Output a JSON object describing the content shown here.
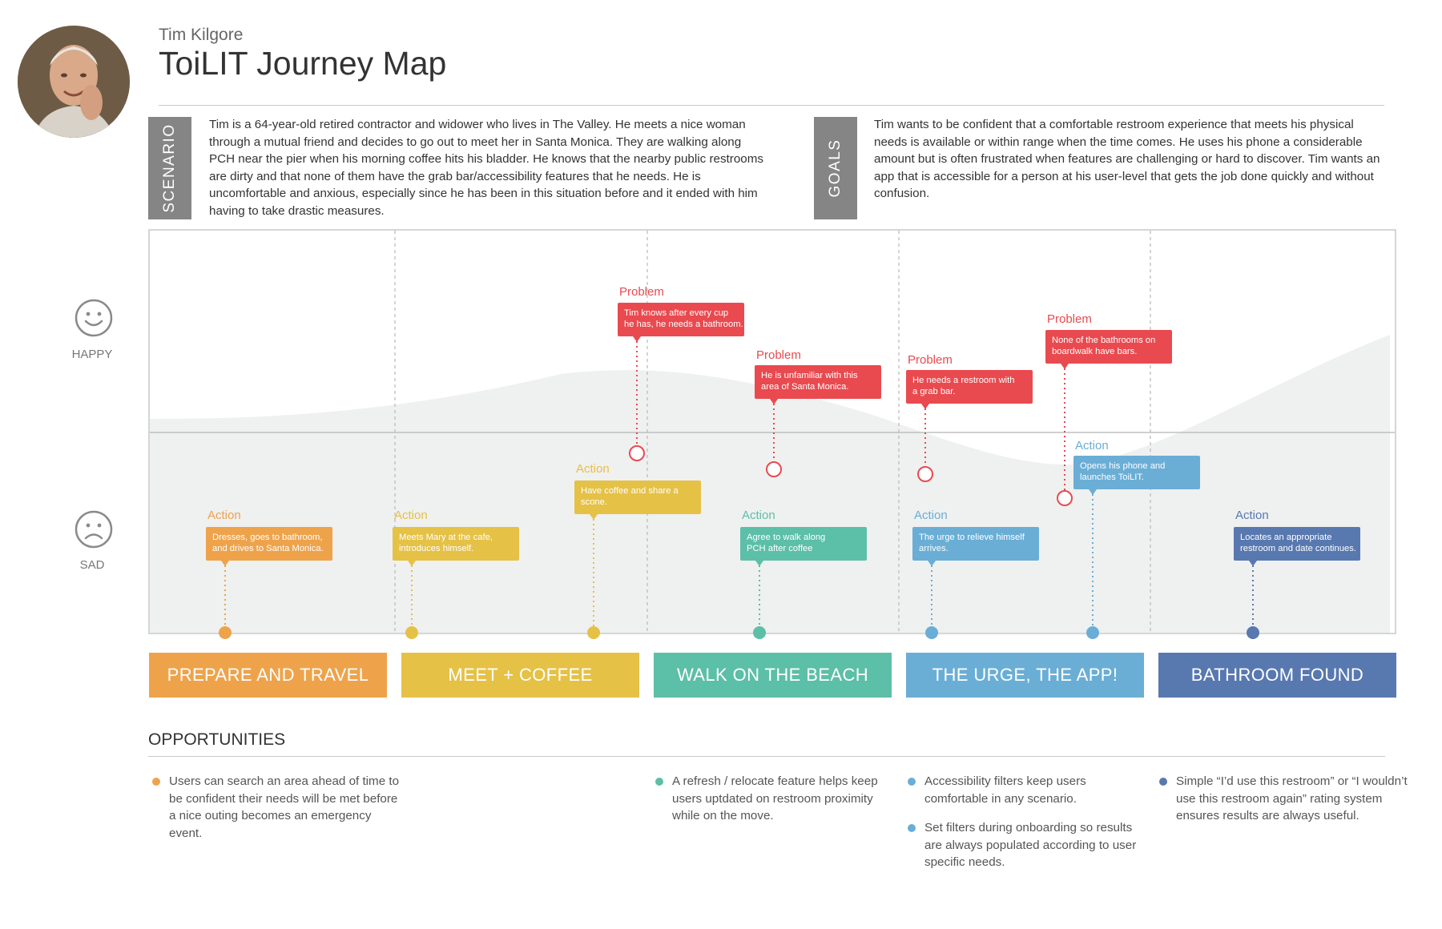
{
  "header": {
    "subtitle": "Tim Kilgore",
    "title": "ToiLIT Journey Map"
  },
  "scenario": {
    "label": "SCENARIO",
    "text": "Tim is a 64-year-old retired contractor and widower who lives in The Valley. He meets a nice woman through a mutual friend and decides to go out to meet her in Santa Monica. They are walking along PCH near the pier when his morning coffee hits his bladder. He knows that the nearby public restrooms are dirty and that none of them have the grab bar/accessibility features that he needs. He is uncomfortable and anxious, especially since he has been in this situation before and it ended with him having to take drastic measures."
  },
  "goals": {
    "label": "GOALS",
    "text": "Tim wants to be confident that a comfortable restroom experience that meets his physical needs is available or within range when the time comes. He uses his phone a considerable amount but is often frustrated when features are challenging or hard to discover. Tim wants an app that is accessible for a person at his user-level that gets the job done quickly and without confusion."
  },
  "moods": {
    "happy": "HAPPY",
    "sad": "SAD"
  },
  "colors": {
    "orange": "#eea34b",
    "yellow": "#e5c146",
    "teal": "#5cbfa7",
    "lightblue": "#6aaed6",
    "darkblue": "#5878b0",
    "red": "#e94a4f"
  },
  "phases": [
    {
      "label": "PREPARE AND TRAVEL",
      "color": "#eea34b"
    },
    {
      "label": "MEET + COFFEE",
      "color": "#e5c146"
    },
    {
      "label": "WALK ON THE BEACH",
      "color": "#5cbfa7"
    },
    {
      "label": "THE URGE, THE APP!",
      "color": "#6aaed6"
    },
    {
      "label": "BATHROOM FOUND",
      "color": "#5878b0"
    }
  ],
  "events": [
    {
      "kind": "Action",
      "text": [
        "Dresses, goes to bathroom,",
        "and drives to Santa Monica."
      ],
      "color": "#eea34b"
    },
    {
      "kind": "Action",
      "text": [
        "Meets Mary at the cafe,",
        "introduces himself."
      ],
      "color": "#e5c146"
    },
    {
      "kind": "Action",
      "text": [
        "Have coffee and share a",
        "scone."
      ],
      "color": "#e5c146"
    },
    {
      "kind": "Problem",
      "text": [
        "Tim knows after every cup",
        "he has, he needs a bathroom."
      ],
      "color": "#e94a4f"
    },
    {
      "kind": "Problem",
      "text": [
        "He is unfamiliar with this",
        "area of Santa Monica."
      ],
      "color": "#e94a4f"
    },
    {
      "kind": "Action",
      "text": [
        "Agree to walk along",
        "PCH after coffee"
      ],
      "color": "#5cbfa7"
    },
    {
      "kind": "Problem",
      "text": [
        "He needs a restroom with",
        "a grab bar."
      ],
      "color": "#e94a4f"
    },
    {
      "kind": "Action",
      "text": [
        "The urge to relieve himself",
        "arrives."
      ],
      "color": "#6aaed6"
    },
    {
      "kind": "Problem",
      "text": [
        "None of the bathrooms on",
        "boardwalk have bars."
      ],
      "color": "#e94a4f"
    },
    {
      "kind": "Action",
      "text": [
        "Opens his phone and",
        "launches ToiLIT."
      ],
      "color": "#6aaed6"
    },
    {
      "kind": "Action",
      "text": [
        "Locates an appropriate",
        "restroom and date continues."
      ],
      "color": "#5878b0"
    }
  ],
  "opportunities": {
    "title": "OPPORTUNITIES",
    "items": [
      {
        "text": "Users can search an area ahead of time to be confident their needs will be met before a nice outing becomes an emergency event.",
        "color": "#eea34b"
      },
      {
        "text": "A refresh / relocate feature helps keep users uptdated on restroom proximity while on the move.",
        "color": "#5cbfa7"
      },
      {
        "text": "Accessibility filters keep users comfortable in any scenario.",
        "color": "#6aaed6"
      },
      {
        "text": "Set filters during onboarding so results are always populated according to user specific needs.",
        "color": "#6aaed6"
      },
      {
        "text": "Simple “I’d use this restroom” or “I wouldn’t use this restroom again” rating system ensures results are always useful.",
        "color": "#5878b0"
      }
    ]
  }
}
